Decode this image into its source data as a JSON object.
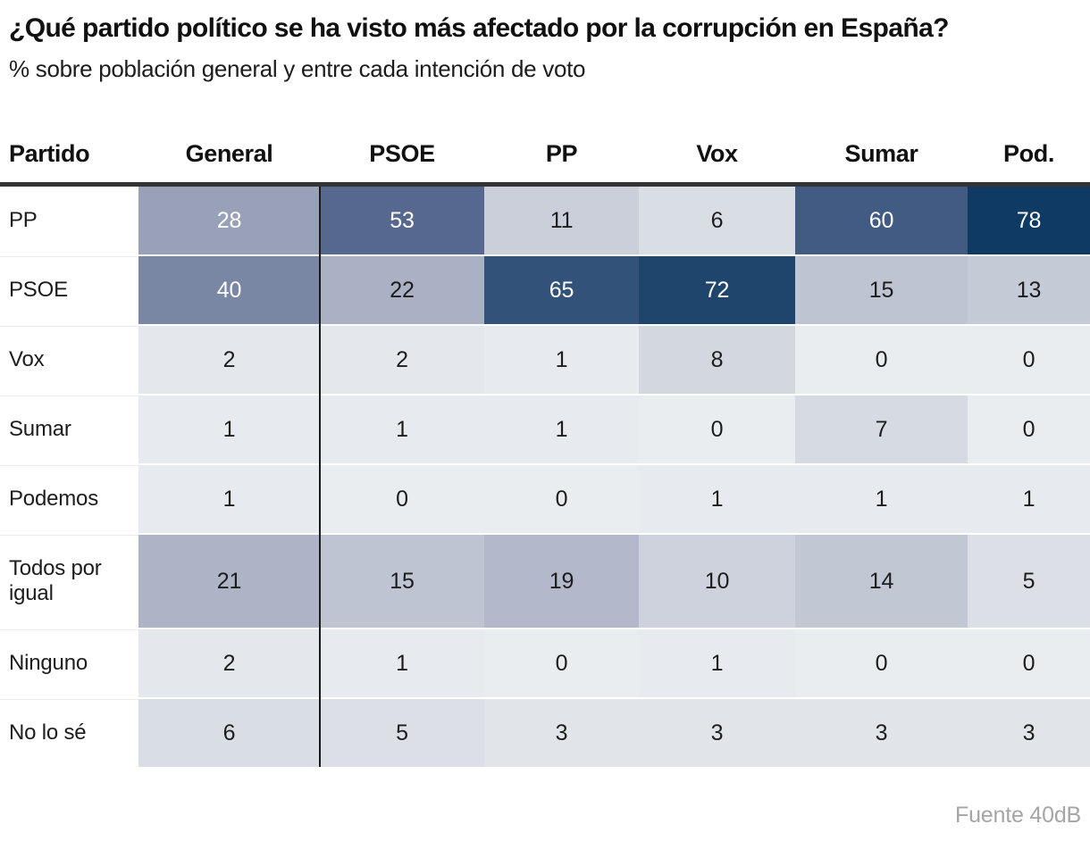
{
  "title": "¿Qué partido político se ha visto más afectado por la corrupción en España?",
  "subtitle": "% sobre población general y entre cada intención de voto",
  "source": "Fuente 40dB",
  "chart_data": {
    "type": "heatmap",
    "columns": [
      "Partido",
      "General",
      "PSOE",
      "PP",
      "Vox",
      "Sumar",
      "Pod."
    ],
    "rows": [
      {
        "label": "PP",
        "values": [
          28,
          53,
          11,
          6,
          60,
          78
        ]
      },
      {
        "label": "PSOE",
        "values": [
          40,
          22,
          65,
          72,
          15,
          13
        ]
      },
      {
        "label": "Vox",
        "values": [
          2,
          2,
          1,
          8,
          0,
          0
        ]
      },
      {
        "label": "Sumar",
        "values": [
          1,
          1,
          1,
          0,
          7,
          0
        ]
      },
      {
        "label": "Podemos",
        "values": [
          1,
          0,
          0,
          1,
          1,
          1
        ]
      },
      {
        "label": "Todos por igual",
        "values": [
          21,
          15,
          19,
          10,
          14,
          5
        ]
      },
      {
        "label": "Ninguno",
        "values": [
          2,
          1,
          0,
          1,
          0,
          0
        ]
      },
      {
        "label": "No lo sé",
        "values": [
          6,
          5,
          3,
          3,
          3,
          3
        ]
      }
    ],
    "value_range": [
      0,
      78
    ],
    "color_scale": {
      "stops": [
        {
          "value": 0,
          "color": "#eaedf0"
        },
        {
          "value": 28,
          "color": "#99a1b8"
        },
        {
          "value": 53,
          "color": "#56688e"
        },
        {
          "value": 78,
          "color": "#0e3a63"
        }
      ],
      "white_text_threshold": 28
    },
    "colors": {
      "header_rule": "#343434",
      "divider_line": "#1a1a1a",
      "dark_text": "#1d1d1d",
      "light_text": "#ffffff",
      "source_text": "#a5a5a5"
    },
    "layout_hints": {
      "divider_after_column": "General",
      "grid": "off",
      "legend": "none"
    }
  }
}
